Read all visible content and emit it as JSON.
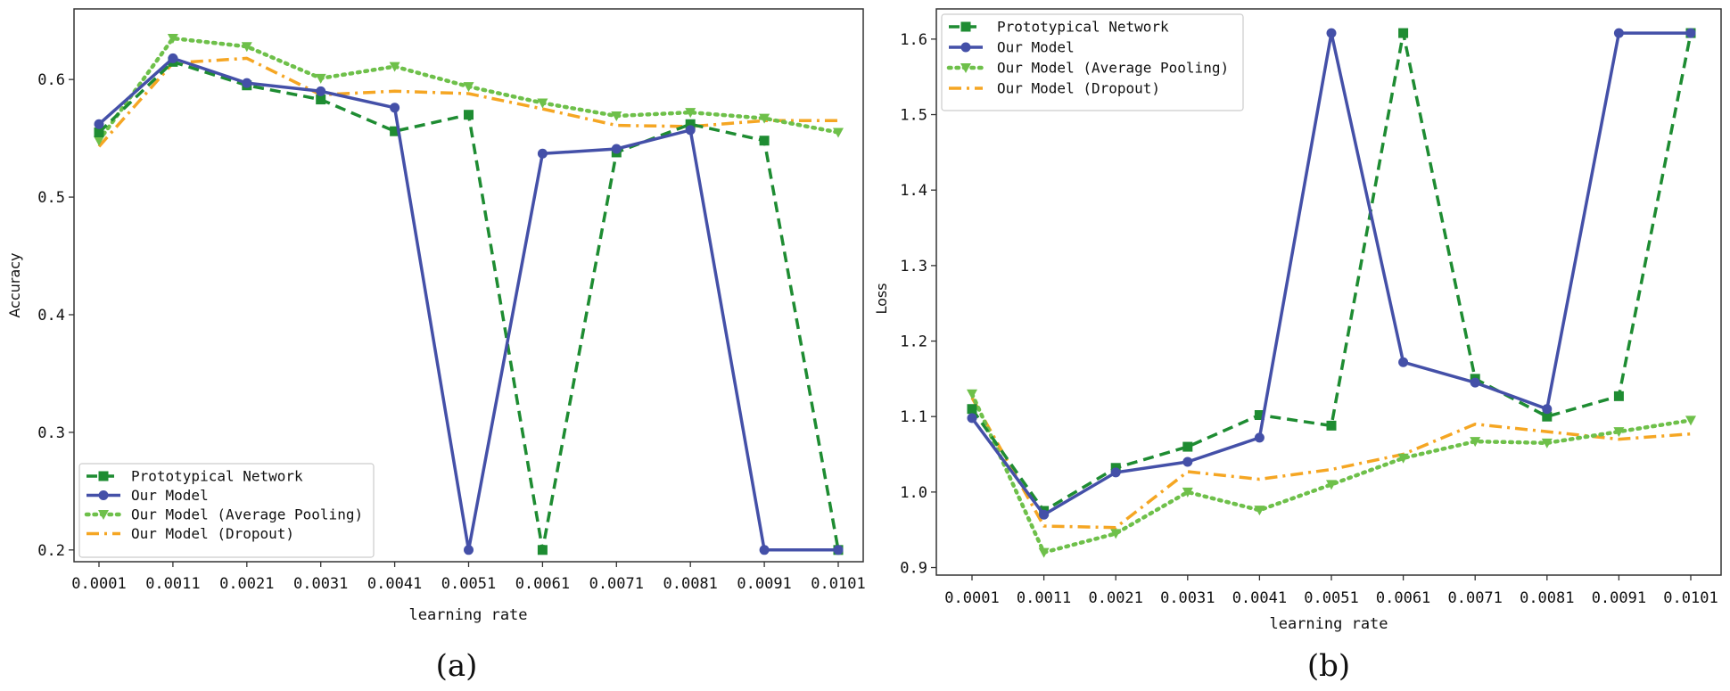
{
  "chart_data": [
    {
      "type": "line",
      "caption": "(a)",
      "xlabel": "learning rate",
      "ylabel": "Accuracy",
      "categories": [
        "0.0001",
        "0.0011",
        "0.0021",
        "0.0031",
        "0.0041",
        "0.0051",
        "0.0061",
        "0.0071",
        "0.0081",
        "0.0091",
        "0.0101"
      ],
      "ylim": [
        0.19,
        0.66
      ],
      "yticks": [
        0.2,
        0.3,
        0.4,
        0.5,
        0.6
      ],
      "ytick_labels": [
        "0.2",
        "0.3",
        "0.4",
        "0.5",
        "0.6"
      ],
      "legend_position": "lower-left",
      "series": [
        {
          "name": "Prototypical Network",
          "color": "#1e8c32",
          "style": "dashed",
          "marker": "square",
          "values": [
            0.555,
            0.615,
            0.595,
            0.583,
            0.556,
            0.57,
            0.2,
            0.538,
            0.562,
            0.548,
            0.2
          ]
        },
        {
          "name": "Our Model",
          "color": "#4450a8",
          "style": "solid",
          "marker": "circle",
          "values": [
            0.562,
            0.618,
            0.597,
            0.59,
            0.576,
            0.2,
            0.537,
            0.541,
            0.557,
            0.2,
            0.2
          ]
        },
        {
          "name": "Our Model (Average Pooling)",
          "color": "#6ec04a",
          "style": "dotted",
          "marker": "triangle-down",
          "values": [
            0.548,
            0.635,
            0.628,
            0.601,
            0.611,
            0.594,
            0.58,
            0.569,
            0.572,
            0.567,
            0.555
          ]
        },
        {
          "name": "Our Model (Dropout)",
          "color": "#f5a623",
          "style": "dashdot",
          "marker": "none",
          "values": [
            0.543,
            0.614,
            0.618,
            0.587,
            0.59,
            0.588,
            0.575,
            0.561,
            0.56,
            0.565,
            0.565
          ]
        }
      ]
    },
    {
      "type": "line",
      "caption": "(b)",
      "xlabel": "learning rate",
      "ylabel": "Loss",
      "categories": [
        "0.0001",
        "0.0011",
        "0.0021",
        "0.0031",
        "0.0041",
        "0.0051",
        "0.0061",
        "0.0071",
        "0.0081",
        "0.0091",
        "0.0101"
      ],
      "ylim": [
        0.89,
        1.64
      ],
      "yticks": [
        0.9,
        1.0,
        1.1,
        1.2,
        1.3,
        1.4,
        1.5,
        1.6
      ],
      "ytick_labels": [
        "0.9",
        "1.0",
        "1.1",
        "1.2",
        "1.3",
        "1.4",
        "1.5",
        "1.6"
      ],
      "legend_position": "upper-left",
      "series": [
        {
          "name": "Prototypical Network",
          "color": "#1e8c32",
          "style": "dashed",
          "marker": "square",
          "values": [
            1.11,
            0.975,
            1.032,
            1.06,
            1.102,
            1.088,
            1.608,
            1.15,
            1.1,
            1.127,
            1.608
          ]
        },
        {
          "name": "Our Model",
          "color": "#4450a8",
          "style": "solid",
          "marker": "circle",
          "values": [
            1.098,
            0.97,
            1.026,
            1.04,
            1.072,
            1.608,
            1.172,
            1.145,
            1.11,
            1.608,
            1.608
          ]
        },
        {
          "name": "Our Model (Average Pooling)",
          "color": "#6ec04a",
          "style": "dotted",
          "marker": "triangle-down",
          "values": [
            1.13,
            0.92,
            0.945,
            1.0,
            0.976,
            1.01,
            1.045,
            1.067,
            1.065,
            1.08,
            1.095
          ]
        },
        {
          "name": "Our Model (Dropout)",
          "color": "#f5a623",
          "style": "dashdot",
          "marker": "none",
          "values": [
            1.125,
            0.955,
            0.953,
            1.027,
            1.017,
            1.03,
            1.05,
            1.09,
            1.08,
            1.07,
            1.077
          ]
        }
      ]
    }
  ]
}
